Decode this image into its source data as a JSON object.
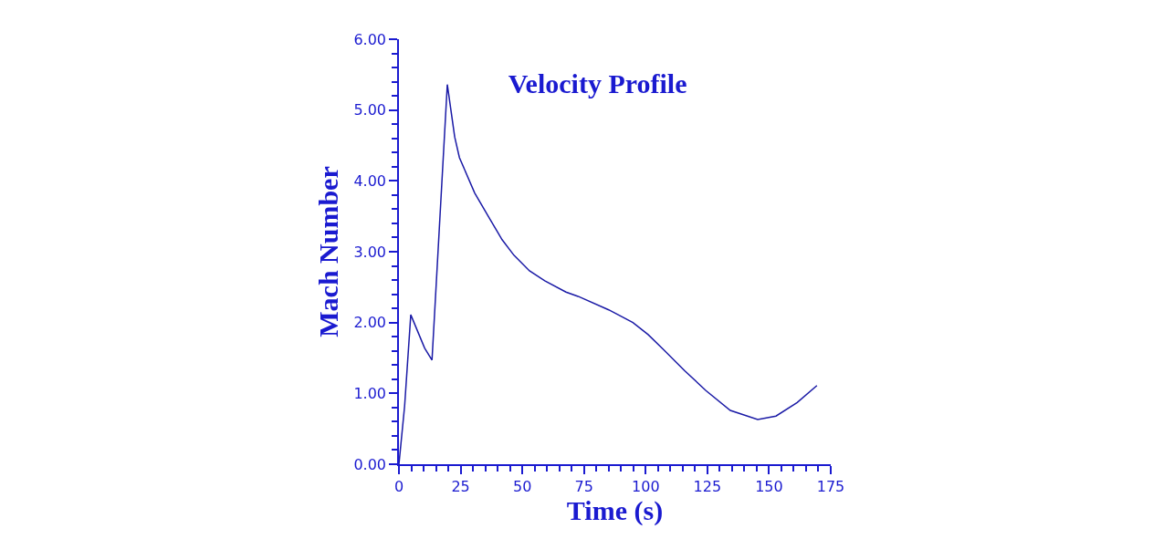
{
  "chart_data": {
    "type": "line",
    "title": "Velocity Profile",
    "xlabel": "Time (s)",
    "ylabel": "Mach Number",
    "x": [
      0,
      2.3,
      4.8,
      10.4,
      13.4,
      19.6,
      22.6,
      24.5,
      30.7,
      36.9,
      41.8,
      46.6,
      52.9,
      59.1,
      67.7,
      72.6,
      85,
      94.8,
      101,
      107.2,
      115.8,
      124.4,
      134.3,
      145.4,
      152.8,
      161.4,
      169.4
    ],
    "series": [
      {
        "color": "#1a1aa6",
        "values": [
          0,
          0.82,
          2.11,
          1.64,
          1.47,
          5.36,
          4.62,
          4.33,
          3.83,
          3.46,
          3.17,
          2.95,
          2.73,
          2.59,
          2.43,
          2.37,
          2.18,
          2.0,
          1.83,
          1.62,
          1.32,
          1.04,
          0.76,
          0.63,
          0.68,
          0.87,
          1.11
        ]
      }
    ],
    "xlim": [
      0,
      175
    ],
    "ylim": [
      0,
      6
    ],
    "xticks": [
      0,
      {
        "value": 5,
        "label": null
      },
      {
        "value": 10,
        "label": null
      },
      {
        "value": 15,
        "label": null
      },
      {
        "value": 20,
        "label": null
      },
      25,
      {
        "value": 30,
        "label": null
      },
      {
        "value": 35,
        "label": null
      },
      {
        "value": 40,
        "label": null
      },
      {
        "value": 45,
        "label": null
      },
      50,
      {
        "value": 55,
        "label": null
      },
      {
        "value": 60,
        "label": null
      },
      {
        "value": 65,
        "label": null
      },
      {
        "value": 70,
        "label": null
      },
      75,
      {
        "value": 80,
        "label": null
      },
      {
        "value": 85,
        "label": null
      },
      {
        "value": 90,
        "label": null
      },
      {
        "value": 95,
        "label": null
      },
      100,
      {
        "value": 105,
        "label": null
      },
      {
        "value": 110,
        "label": null
      },
      {
        "value": 115,
        "label": null
      },
      {
        "value": 120,
        "label": null
      },
      125,
      {
        "value": 130,
        "label": null
      },
      {
        "value": 135,
        "label": null
      },
      {
        "value": 140,
        "label": null
      },
      {
        "value": 145,
        "label": null
      },
      150,
      {
        "value": 155,
        "label": null
      },
      {
        "value": 160,
        "label": null
      },
      {
        "value": 165,
        "label": null
      },
      {
        "value": 170,
        "label": null
      },
      175
    ],
    "yticks": [
      {
        "value": 0,
        "label": "0.00"
      },
      {
        "value": 0.2,
        "label": null
      },
      {
        "value": 0.4,
        "label": null
      },
      {
        "value": 0.6,
        "label": null
      },
      {
        "value": 0.8,
        "label": null
      },
      {
        "value": 1,
        "label": "1.00"
      },
      {
        "value": 1.2,
        "label": null
      },
      {
        "value": 1.4,
        "label": null
      },
      {
        "value": 1.6,
        "label": null
      },
      {
        "value": 1.8,
        "label": null
      },
      {
        "value": 2,
        "label": "2.00"
      },
      {
        "value": 2.2,
        "label": null
      },
      {
        "value": 2.4,
        "label": null
      },
      {
        "value": 2.6,
        "label": null
      },
      {
        "value": 2.8,
        "label": null
      },
      {
        "value": 3,
        "label": "3.00"
      },
      {
        "value": 3.2,
        "label": null
      },
      {
        "value": 3.4,
        "label": null
      },
      {
        "value": 3.6,
        "label": null
      },
      {
        "value": 3.8,
        "label": null
      },
      {
        "value": 4,
        "label": "4.00"
      },
      {
        "value": 4.2,
        "label": null
      },
      {
        "value": 4.4,
        "label": null
      },
      {
        "value": 4.6,
        "label": null
      },
      {
        "value": 4.8,
        "label": null
      },
      {
        "value": 5,
        "label": "5.00"
      },
      {
        "value": 5.2,
        "label": null
      },
      {
        "value": 5.4,
        "label": null
      },
      {
        "value": 5.6,
        "label": null
      },
      {
        "value": 5.8,
        "label": null
      },
      {
        "value": 6,
        "label": "6.00"
      }
    ],
    "legend": false,
    "marker": "none",
    "line_style": "solid"
  }
}
